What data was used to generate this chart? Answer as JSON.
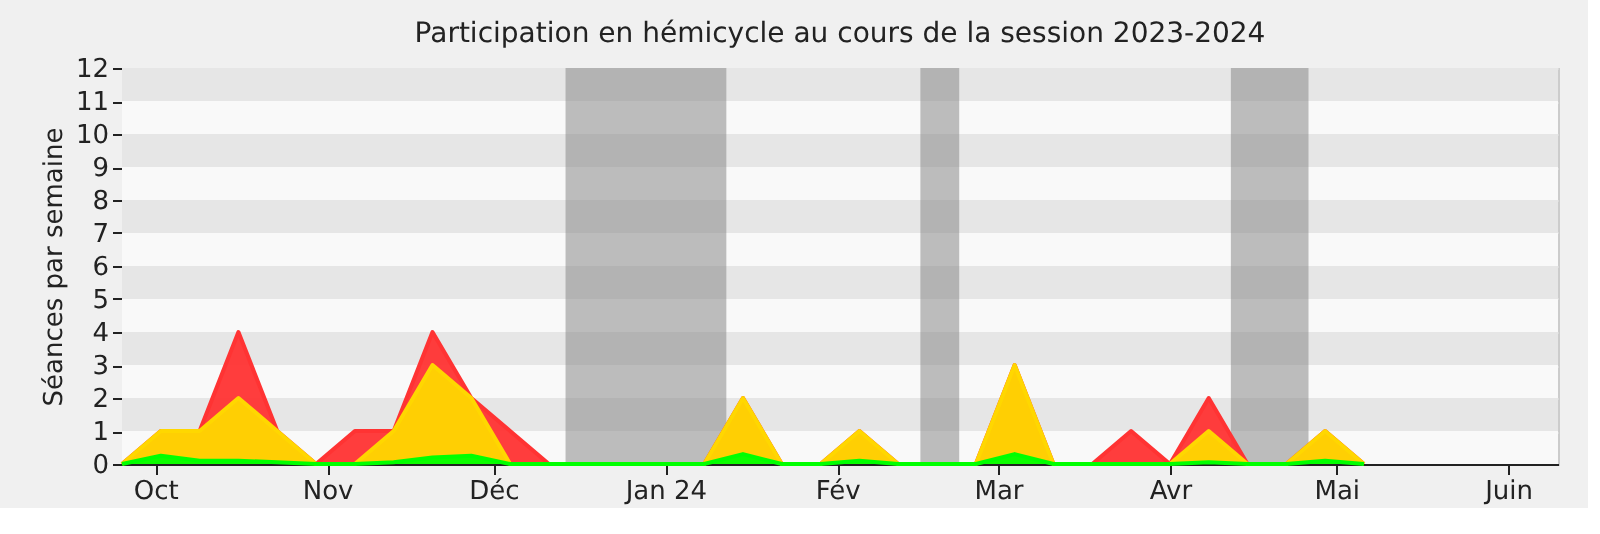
{
  "chart_data": {
    "type": "area",
    "title": "Participation en hémicycle au cours de la session 2023-2024",
    "ylabel": "Séances par semaine",
    "x": [
      "2023-09-25",
      "2023-10-02",
      "2023-10-09",
      "2023-10-16",
      "2023-10-23",
      "2023-10-30",
      "2023-11-06",
      "2023-11-13",
      "2023-11-20",
      "2023-11-27",
      "2023-12-04",
      "2023-12-11",
      "2023-12-18",
      "2023-12-25",
      "2024-01-01",
      "2024-01-08",
      "2024-01-15",
      "2024-01-22",
      "2024-01-29",
      "2024-02-05",
      "2024-02-12",
      "2024-02-19",
      "2024-02-26",
      "2024-03-04",
      "2024-03-11",
      "2024-03-18",
      "2024-03-25",
      "2024-04-01",
      "2024-04-08",
      "2024-04-15",
      "2024-04-22",
      "2024-04-29",
      "2024-05-06"
    ],
    "series": [
      {
        "color": "#ff3333",
        "values": [
          0,
          1,
          1,
          4,
          1,
          0,
          1,
          1,
          4,
          2,
          1,
          0,
          0,
          0,
          0,
          0,
          2,
          0,
          0,
          1,
          0,
          0,
          0,
          3,
          0,
          0,
          1,
          0,
          2,
          0,
          0,
          1,
          0
        ]
      },
      {
        "color": "#ffd700",
        "values": [
          0,
          1,
          1,
          2,
          1,
          0,
          0,
          1,
          3,
          2,
          0,
          0,
          0,
          0,
          0,
          0,
          2,
          0,
          0,
          1,
          0,
          0,
          0,
          3,
          0,
          0,
          0,
          0,
          1,
          0,
          0,
          1,
          0
        ]
      },
      {
        "color": "#00ff00",
        "values": [
          0,
          0.25,
          0.1,
          0.1,
          0.05,
          0,
          0,
          0.05,
          0.2,
          0.25,
          0,
          0,
          0,
          0,
          0,
          0,
          0.3,
          0,
          0,
          0.1,
          0,
          0,
          0,
          0.3,
          0,
          0,
          0,
          0,
          0.05,
          0,
          0,
          0.1,
          0
        ]
      }
    ],
    "xlim": [
      "2023-09-25",
      "2024-06-10"
    ],
    "xticks": [
      {
        "value": "2023-10-01",
        "label": "Oct"
      },
      {
        "value": "2023-11-01",
        "label": "Nov"
      },
      {
        "value": "2023-12-01",
        "label": "Déc"
      },
      {
        "value": "2024-01-01",
        "label": "Jan 24"
      },
      {
        "value": "2024-02-01",
        "label": "Fév"
      },
      {
        "value": "2024-03-01",
        "label": "Mar"
      },
      {
        "value": "2024-04-01",
        "label": "Avr"
      },
      {
        "value": "2024-05-01",
        "label": "Mai"
      },
      {
        "value": "2024-06-01",
        "label": "Juin"
      }
    ],
    "ylim": [
      0,
      12
    ],
    "yticks": [
      0,
      1,
      2,
      3,
      4,
      5,
      6,
      7,
      8,
      9,
      10,
      11,
      12
    ],
    "bands": [
      {
        "axis": "x",
        "from": "2023-12-14",
        "to": "2024-01-12",
        "color": "#808080"
      },
      {
        "axis": "x",
        "from": "2024-02-16",
        "to": "2024-02-23",
        "color": "#808080"
      },
      {
        "axis": "x",
        "from": "2024-04-12",
        "to": "2024-04-26",
        "color": "#808080"
      }
    ],
    "grid": "y"
  }
}
